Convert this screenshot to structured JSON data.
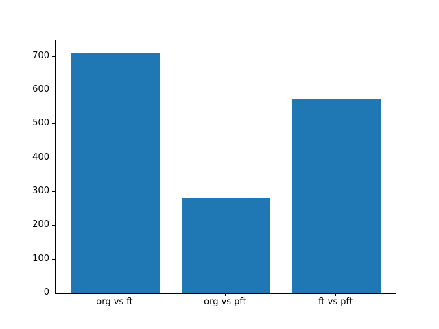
{
  "chart_data": {
    "type": "bar",
    "title": "",
    "xlabel": "",
    "ylabel": "",
    "categories": [
      "org vs ft",
      "org vs pft",
      "ft vs pft"
    ],
    "values": [
      712,
      281,
      575
    ],
    "bar_color": "#1f77b4",
    "bar_width": 0.8,
    "ylim": [
      0,
      748
    ],
    "xlim": [
      -0.54,
      2.54
    ],
    "yticks": [
      0,
      100,
      200,
      300,
      400,
      500,
      600,
      700
    ],
    "grid": false,
    "legend": "none",
    "background_color": "#ffffff",
    "spine_color": "#000000"
  }
}
